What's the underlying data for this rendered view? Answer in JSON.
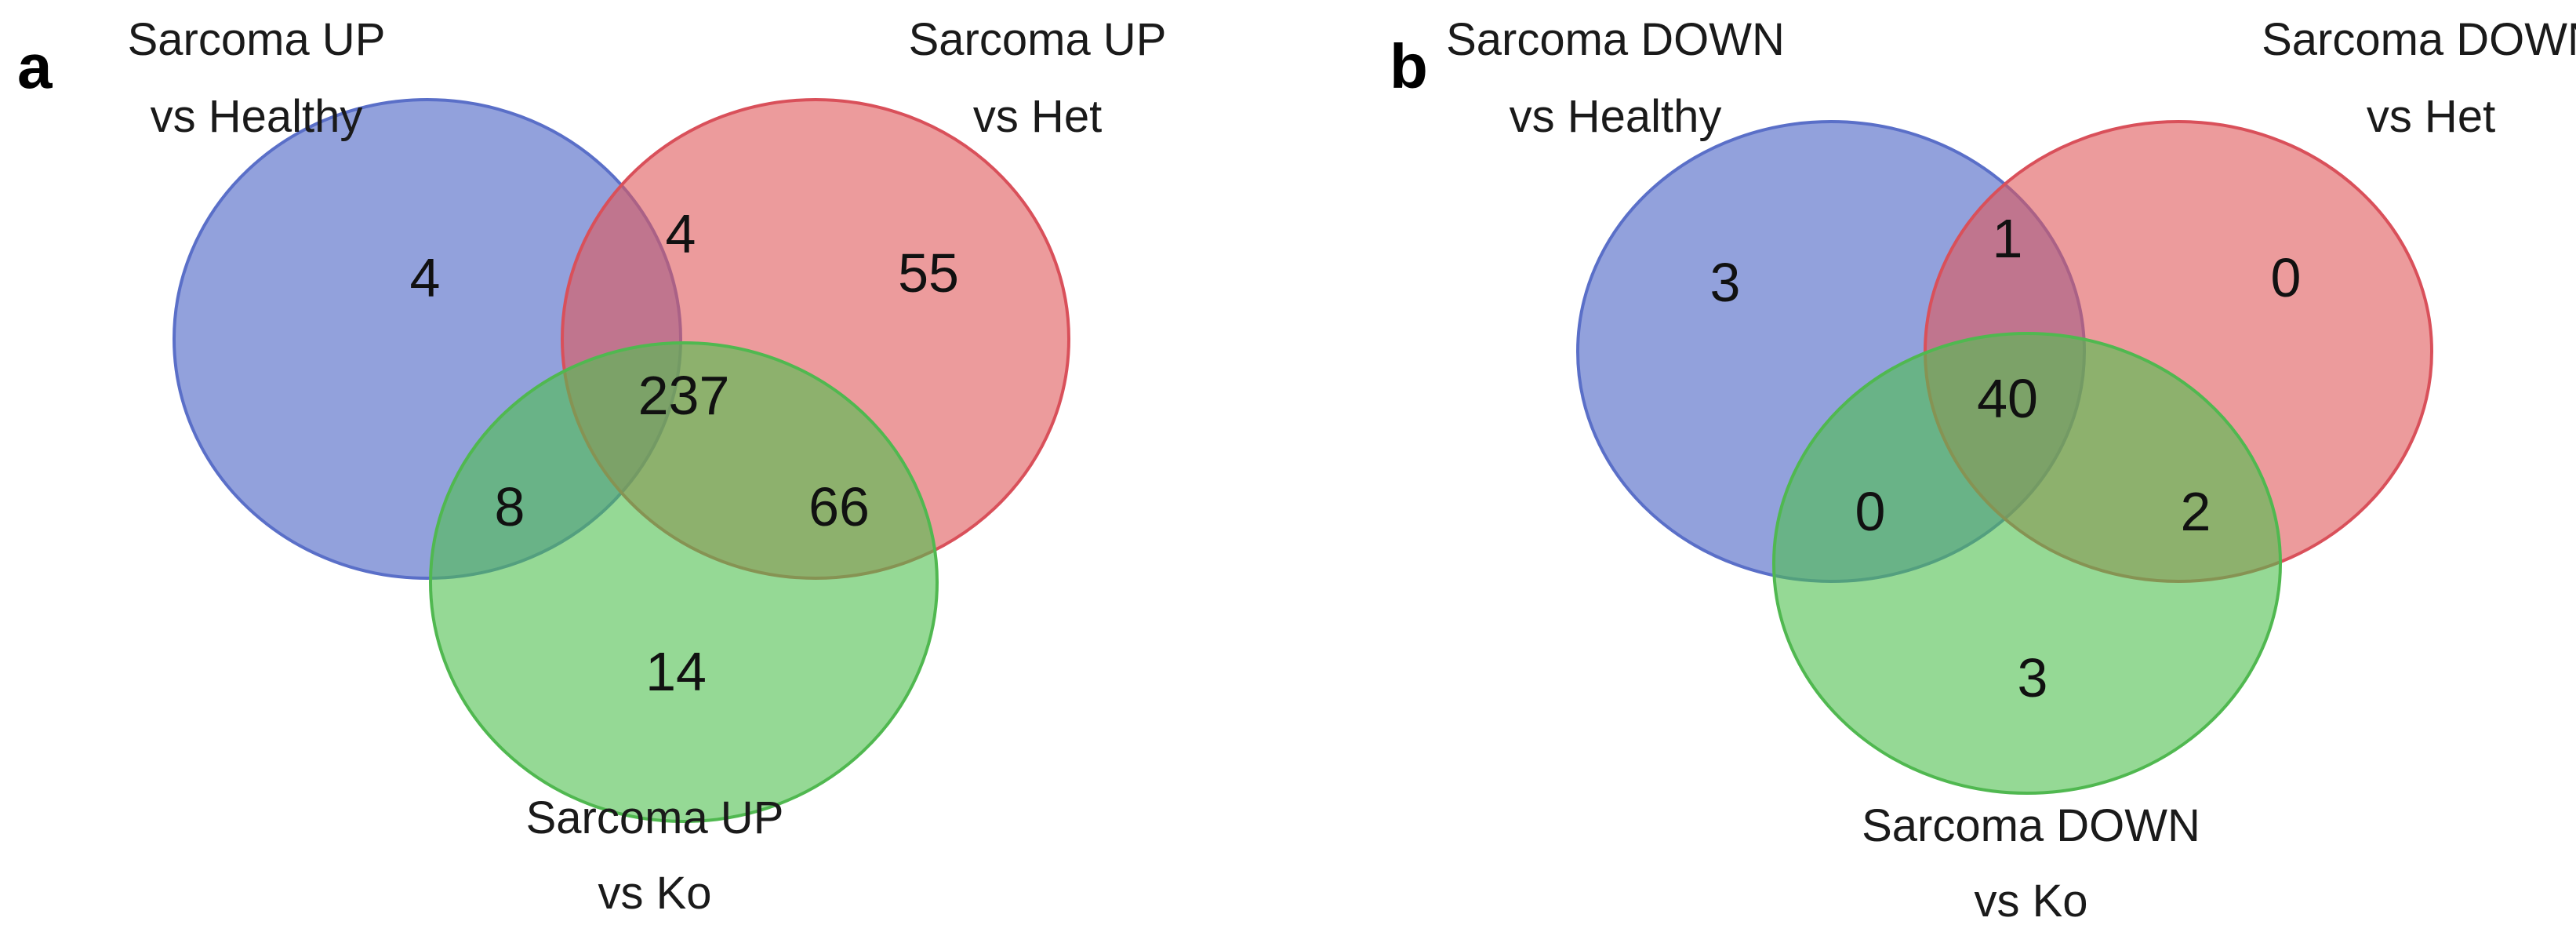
{
  "colors": {
    "set_a": "#4a62c4",
    "set_b": "#e0585a",
    "set_c": "#4fbf4f",
    "stroke_a": "#5a6fc8",
    "stroke_b": "#d9505a",
    "stroke_c": "#50b850"
  },
  "panels": [
    {
      "letter": "a",
      "sets": {
        "a": {
          "label_line1": "Sarcoma UP",
          "label_line2": "vs Healthy"
        },
        "b": {
          "label_line1": "Sarcoma UP",
          "label_line2": "vs Het"
        },
        "c": {
          "label_line1": "Sarcoma UP",
          "label_line2": "vs Ko"
        }
      },
      "regions": {
        "a_only": "4",
        "ab": "4",
        "b_only": "55",
        "abc": "237",
        "ac": "8",
        "bc": "66",
        "c_only": "14"
      }
    },
    {
      "letter": "b",
      "sets": {
        "a": {
          "label_line1": "Sarcoma DOWN",
          "label_line2": "vs Healthy"
        },
        "b": {
          "label_line1": "Sarcoma DOWN",
          "label_line2": "vs Het"
        },
        "c": {
          "label_line1": "Sarcoma DOWN",
          "label_line2": "vs Ko"
        }
      },
      "regions": {
        "a_only": "3",
        "ab": "1",
        "b_only": "0",
        "abc": "40",
        "ac": "0",
        "bc": "2",
        "c_only": "3"
      }
    }
  ]
}
